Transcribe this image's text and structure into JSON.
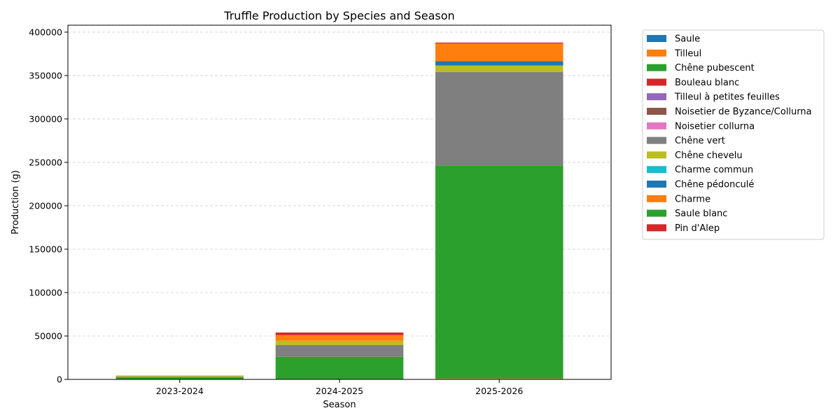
{
  "chart_data": {
    "type": "bar",
    "stacked": true,
    "title": "Truffle Production by Species and Season",
    "xlabel": "Season",
    "ylabel": "Production (g)",
    "categories": [
      "2023-2024",
      "2024-2025",
      "2025-2026"
    ],
    "ylim": [
      0,
      408000
    ],
    "yticks": [
      0,
      50000,
      100000,
      150000,
      200000,
      250000,
      300000,
      350000,
      400000
    ],
    "grid": "y-dashed",
    "legend_position": "outside-right",
    "series": [
      {
        "name": "Saule",
        "color": "#1f77b4",
        "values": [
          0,
          0,
          0
        ]
      },
      {
        "name": "Tilleul",
        "color": "#ff7f0e",
        "values": [
          0,
          0,
          1000
        ]
      },
      {
        "name": "Chêne pubescent",
        "color": "#2ca02c",
        "values": [
          2000,
          26000,
          245500
        ]
      },
      {
        "name": "Bouleau blanc",
        "color": "#d62728",
        "values": [
          0,
          0,
          0
        ]
      },
      {
        "name": "Tilleul à petites feuilles",
        "color": "#9467bd",
        "values": [
          0,
          0,
          0
        ]
      },
      {
        "name": "Noisetier de Byzance/Collurna",
        "color": "#8c564b",
        "values": [
          0,
          0,
          0
        ]
      },
      {
        "name": "Noisetier collurna",
        "color": "#e377c2",
        "values": [
          0,
          0,
          0
        ]
      },
      {
        "name": "Chêne vert",
        "color": "#7f7f7f",
        "values": [
          1000,
          13500,
          107500
        ]
      },
      {
        "name": "Chêne chevelu",
        "color": "#bcbd22",
        "values": [
          1500,
          5000,
          7500
        ]
      },
      {
        "name": "Charme commun",
        "color": "#17becf",
        "values": [
          0,
          0,
          0
        ]
      },
      {
        "name": "Chêne pédonculé",
        "color": "#1f77b4",
        "values": [
          0,
          0,
          5000
        ]
      },
      {
        "name": "Charme",
        "color": "#ff7f0e",
        "values": [
          0,
          6500,
          20500
        ]
      },
      {
        "name": "Saule blanc",
        "color": "#2ca02c",
        "values": [
          0,
          0,
          0
        ]
      },
      {
        "name": "Pin d'Alep",
        "color": "#d62728",
        "values": [
          0,
          3000,
          1000
        ]
      }
    ]
  }
}
